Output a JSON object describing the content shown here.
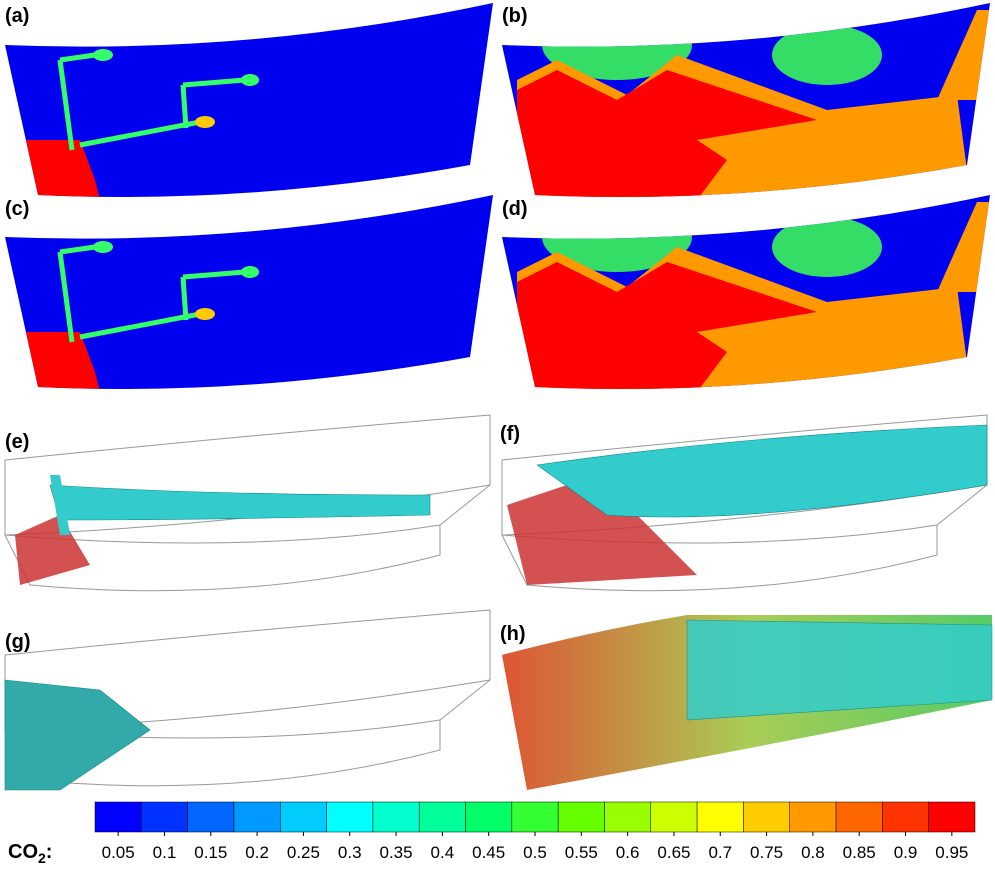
{
  "panels": [
    {
      "label": "(a)"
    },
    {
      "label": "(b)"
    },
    {
      "label": "(c)"
    },
    {
      "label": "(d)"
    },
    {
      "label": "(e)"
    },
    {
      "label": "(f)"
    },
    {
      "label": "(g)"
    },
    {
      "label": "(h)"
    }
  ],
  "colorbar": {
    "label": "CO",
    "label_subscript": "2",
    "label_suffix": ":",
    "lim": [
      0.025,
      0.975
    ],
    "ticks": [
      0.05,
      0.1,
      0.15,
      0.2,
      0.25,
      0.3,
      0.35,
      0.4,
      0.45,
      0.5,
      0.55,
      0.6,
      0.65,
      0.7,
      0.75,
      0.8,
      0.85,
      0.9,
      0.95
    ],
    "colors": [
      "#0000ff",
      "#0033ff",
      "#0066ff",
      "#0099ff",
      "#00ccff",
      "#00ffff",
      "#00ffcc",
      "#00ff99",
      "#00ff66",
      "#33ff33",
      "#66ff00",
      "#99ff00",
      "#ccff00",
      "#ffff00",
      "#ffcc00",
      "#ff9900",
      "#ff6600",
      "#ff3300",
      "#ff0000"
    ]
  }
}
